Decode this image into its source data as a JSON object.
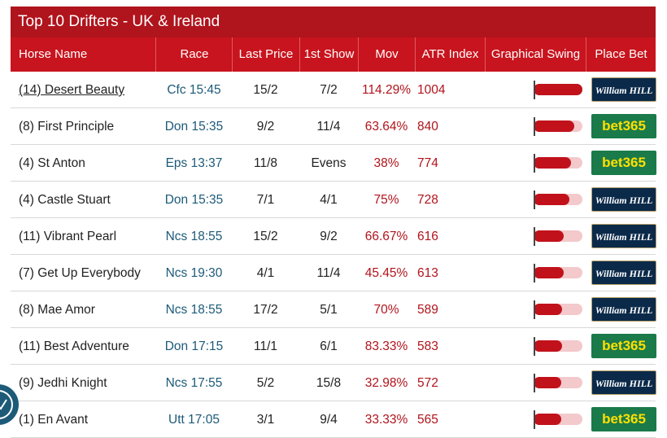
{
  "title": "Top 10 Drifters - UK & Ireland",
  "columns": [
    "Horse Name",
    "Race",
    "Last Price",
    "1st Show",
    "Mov",
    "ATR Index",
    "Graphical Swing",
    "Place Bet"
  ],
  "rows": [
    {
      "horse": "(14) Desert Beauty",
      "race": "Cfc 15:45",
      "last_price": "15/2",
      "first_show": "7/2",
      "mov": "114.29%",
      "atr_index": 1004,
      "bookmaker": "William HILL"
    },
    {
      "horse": "(8) First Principle",
      "race": "Don 15:35",
      "last_price": "9/2",
      "first_show": "11/4",
      "mov": "63.64%",
      "atr_index": 840,
      "bookmaker": "bet365"
    },
    {
      "horse": "(4) St Anton",
      "race": "Eps 13:37",
      "last_price": "11/8",
      "first_show": "Evens",
      "mov": "38%",
      "atr_index": 774,
      "bookmaker": "bet365"
    },
    {
      "horse": "(4) Castle Stuart",
      "race": "Don 15:35",
      "last_price": "7/1",
      "first_show": "4/1",
      "mov": "75%",
      "atr_index": 728,
      "bookmaker": "William HILL"
    },
    {
      "horse": "(11) Vibrant Pearl",
      "race": "Ncs 18:55",
      "last_price": "15/2",
      "first_show": "9/2",
      "mov": "66.67%",
      "atr_index": 616,
      "bookmaker": "William HILL"
    },
    {
      "horse": "(7) Get Up Everybody",
      "race": "Ncs 19:30",
      "last_price": "4/1",
      "first_show": "11/4",
      "mov": "45.45%",
      "atr_index": 613,
      "bookmaker": "William HILL"
    },
    {
      "horse": "(8) Mae Amor",
      "race": "Ncs 18:55",
      "last_price": "17/2",
      "first_show": "5/1",
      "mov": "70%",
      "atr_index": 589,
      "bookmaker": "William HILL"
    },
    {
      "horse": "(11) Best Adventure",
      "race": "Don 17:15",
      "last_price": "11/1",
      "first_show": "6/1",
      "mov": "83.33%",
      "atr_index": 583,
      "bookmaker": "bet365"
    },
    {
      "horse": "(9) Jedhi Knight",
      "race": "Ncs 17:55",
      "last_price": "5/2",
      "first_show": "15/8",
      "mov": "32.98%",
      "atr_index": 572,
      "bookmaker": "William HILL"
    },
    {
      "horse": "(1) En Avant",
      "race": "Utt 17:05",
      "last_price": "3/1",
      "first_show": "9/4",
      "mov": "33.33%",
      "atr_index": 565,
      "bookmaker": "bet365"
    }
  ]
}
